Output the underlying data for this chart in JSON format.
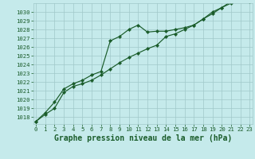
{
  "title": "Graphe pression niveau de la mer (hPa)",
  "background_color": "#c5eaeb",
  "grid_color": "#a0c8c9",
  "line_color": "#1a5c2a",
  "x_values": [
    0,
    1,
    2,
    3,
    4,
    5,
    6,
    7,
    8,
    9,
    10,
    11,
    12,
    13,
    14,
    15,
    16,
    17,
    18,
    19,
    20,
    21,
    22,
    23
  ],
  "line1": [
    1017.5,
    1018.5,
    1019.7,
    1021.2,
    1021.8,
    1022.2,
    1022.8,
    1023.2,
    1026.7,
    1027.2,
    1028.0,
    1028.5,
    1027.7,
    1027.8,
    1027.8,
    1028.0,
    1028.2,
    1028.5,
    1029.2,
    1030.0,
    1030.5,
    1031.2,
    1031.5,
    1031.2
  ],
  "line2": [
    1017.5,
    1018.3,
    1019.0,
    1020.8,
    1021.5,
    1021.8,
    1022.2,
    1022.8,
    1023.5,
    1024.2,
    1024.8,
    1025.3,
    1025.8,
    1026.2,
    1027.2,
    1027.5,
    1028.0,
    1028.5,
    1029.2,
    1029.8,
    1030.5,
    1031.0,
    1031.3,
    1031.2
  ],
  "ylim": [
    1017.2,
    1031.0
  ],
  "yticks": [
    1018,
    1019,
    1020,
    1021,
    1022,
    1023,
    1024,
    1025,
    1026,
    1027,
    1028,
    1029,
    1030
  ],
  "xlim": [
    -0.3,
    23.3
  ],
  "xticks": [
    0,
    1,
    2,
    3,
    4,
    5,
    6,
    7,
    8,
    9,
    10,
    11,
    12,
    13,
    14,
    15,
    16,
    17,
    18,
    19,
    20,
    21,
    22,
    23
  ],
  "tick_fontsize": 5.2,
  "title_fontsize": 7.0,
  "marker": "D",
  "marker_size": 2.2,
  "line_width": 0.85
}
